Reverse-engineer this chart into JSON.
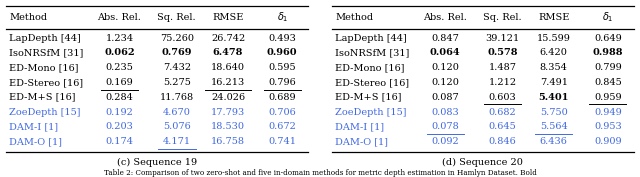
{
  "left_table": {
    "caption": "(c) Sequence 19",
    "headers": [
      "Method",
      "Abs. Rel.",
      "Sq. Rel.",
      "RMSE",
      "δ₁"
    ],
    "rows": [
      {
        "method": "LapDepth [44]",
        "values": [
          "1.234",
          "75.260",
          "26.742",
          "0.493"
        ],
        "color": "black",
        "bold": [],
        "underline": []
      },
      {
        "method": "IsoNRSfM [31]",
        "values": [
          "0.062",
          "0.769",
          "6.478",
          "0.960"
        ],
        "color": "black",
        "bold": [
          "0.062",
          "0.769",
          "6.478",
          "0.960"
        ],
        "underline": []
      },
      {
        "method": "ED-Mono [16]",
        "values": [
          "0.235",
          "7.432",
          "18.640",
          "0.595"
        ],
        "color": "black",
        "bold": [],
        "underline": []
      },
      {
        "method": "ED-Stereo [16]",
        "values": [
          "0.169",
          "5.275",
          "16.213",
          "0.796"
        ],
        "color": "black",
        "bold": [],
        "underline": [
          "0.169",
          "16.213",
          "0.796"
        ]
      },
      {
        "method": "ED-M+S [16]",
        "values": [
          "0.284",
          "11.768",
          "24.026",
          "0.689"
        ],
        "color": "black",
        "bold": [],
        "underline": []
      },
      {
        "method": "ZoeDepth [15]",
        "values": [
          "0.192",
          "4.670",
          "17.793",
          "0.706"
        ],
        "color": "blue",
        "bold": [],
        "underline": []
      },
      {
        "method": "DAM-I [1]",
        "values": [
          "0.203",
          "5.076",
          "18.530",
          "0.672"
        ],
        "color": "blue",
        "bold": [],
        "underline": []
      },
      {
        "method": "DAM-O [1]",
        "values": [
          "0.174",
          "4.171",
          "16.758",
          "0.741"
        ],
        "color": "blue",
        "bold": [],
        "underline": [
          "4.171"
        ]
      }
    ]
  },
  "right_table": {
    "caption": "(d) Sequence 20",
    "headers": [
      "Method",
      "Abs. Rel.",
      "Sq. Rel.",
      "RMSE",
      "δ₁"
    ],
    "rows": [
      {
        "method": "LapDepth [44]",
        "values": [
          "0.847",
          "39.121",
          "15.599",
          "0.649"
        ],
        "color": "black",
        "bold": [],
        "underline": []
      },
      {
        "method": "IsoNRSfM [31]",
        "values": [
          "0.064",
          "0.578",
          "6.420",
          "0.988"
        ],
        "color": "black",
        "bold": [
          "0.064",
          "0.578",
          "0.988"
        ],
        "underline": []
      },
      {
        "method": "ED-Mono [16]",
        "values": [
          "0.120",
          "1.487",
          "8.354",
          "0.799"
        ],
        "color": "black",
        "bold": [],
        "underline": []
      },
      {
        "method": "ED-Stereo [16]",
        "values": [
          "0.120",
          "1.212",
          "7.491",
          "0.845"
        ],
        "color": "black",
        "bold": [],
        "underline": []
      },
      {
        "method": "ED-M+S [16]",
        "values": [
          "0.087",
          "0.603",
          "5.401",
          "0.959"
        ],
        "color": "black",
        "bold": [
          "5.401"
        ],
        "underline": [
          "0.603",
          "0.959"
        ]
      },
      {
        "method": "ZoeDepth [15]",
        "values": [
          "0.083",
          "0.682",
          "5.750",
          "0.949"
        ],
        "color": "blue",
        "bold": [],
        "underline": []
      },
      {
        "method": "DAM-I [1]",
        "values": [
          "0.078",
          "0.645",
          "5.564",
          "0.953"
        ],
        "color": "blue",
        "bold": [],
        "underline": [
          "0.078",
          "5.564"
        ]
      },
      {
        "method": "DAM-O [1]",
        "values": [
          "0.092",
          "0.846",
          "6.436",
          "0.909"
        ],
        "color": "blue",
        "bold": [],
        "underline": []
      }
    ]
  },
  "bottom_caption": "Table 2: Comparison of two zero-shot and five in-domain methods for metric depth estimation in Hamlyn Dataset. Bold",
  "blue_color": "#4169E1",
  "bg_color": "white"
}
